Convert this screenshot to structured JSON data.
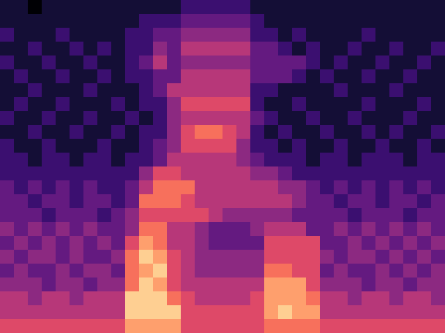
{
  "chart_data": {
    "type": "heatmap",
    "tick_labels": false,
    "zlim": [
      0,
      10
    ],
    "cells": [
      [
        1,
        1,
        0,
        1,
        1,
        1,
        1,
        1,
        1,
        1,
        1,
        1,
        1,
        2,
        2,
        2,
        2,
        2,
        1,
        1,
        1,
        1,
        1,
        1,
        1,
        1,
        1,
        1,
        1,
        1,
        1,
        1
      ],
      [
        1,
        1,
        1,
        1,
        1,
        1,
        1,
        1,
        1,
        1,
        2,
        2,
        2,
        3,
        3,
        3,
        3,
        3,
        2,
        1,
        1,
        1,
        1,
        1,
        1,
        1,
        1,
        1,
        1,
        1,
        1,
        1
      ],
      [
        2,
        1,
        1,
        1,
        2,
        1,
        1,
        1,
        1,
        2,
        2,
        3,
        3,
        4,
        4,
        4,
        4,
        4,
        2,
        2,
        1,
        2,
        1,
        1,
        1,
        1,
        2,
        1,
        1,
        1,
        1,
        1
      ],
      [
        1,
        1,
        2,
        1,
        1,
        2,
        1,
        2,
        1,
        2,
        2,
        4,
        3,
        5,
        5,
        5,
        5,
        5,
        3,
        3,
        2,
        1,
        2,
        1,
        1,
        2,
        1,
        1,
        2,
        1,
        1,
        2
      ],
      [
        2,
        1,
        1,
        2,
        1,
        1,
        2,
        1,
        1,
        2,
        3,
        5,
        3,
        4,
        4,
        4,
        4,
        4,
        3,
        3,
        3,
        3,
        2,
        1,
        2,
        1,
        1,
        2,
        1,
        1,
        2,
        1
      ],
      [
        1,
        2,
        1,
        1,
        2,
        1,
        1,
        2,
        1,
        2,
        2,
        3,
        3,
        5,
        5,
        5,
        5,
        5,
        3,
        3,
        3,
        2,
        1,
        2,
        1,
        1,
        2,
        1,
        1,
        2,
        1,
        1
      ],
      [
        1,
        1,
        2,
        1,
        1,
        1,
        2,
        1,
        1,
        1,
        2,
        3,
        5,
        5,
        5,
        5,
        5,
        5,
        2,
        2,
        1,
        1,
        1,
        1,
        2,
        1,
        1,
        1,
        2,
        1,
        1,
        1
      ],
      [
        1,
        2,
        1,
        1,
        2,
        1,
        1,
        1,
        2,
        1,
        2,
        2,
        4,
        6,
        6,
        6,
        6,
        6,
        2,
        1,
        1,
        2,
        1,
        1,
        1,
        1,
        2,
        1,
        1,
        1,
        2,
        1
      ],
      [
        2,
        1,
        1,
        2,
        1,
        1,
        2,
        1,
        1,
        2,
        1,
        2,
        4,
        5,
        5,
        5,
        5,
        5,
        3,
        2,
        1,
        1,
        2,
        1,
        1,
        2,
        1,
        1,
        1,
        2,
        1,
        1
      ],
      [
        1,
        1,
        2,
        1,
        1,
        2,
        1,
        1,
        2,
        1,
        2,
        2,
        4,
        6,
        7,
        7,
        6,
        5,
        2,
        1,
        2,
        1,
        1,
        2,
        1,
        1,
        2,
        1,
        2,
        1,
        1,
        2
      ],
      [
        2,
        1,
        1,
        2,
        1,
        1,
        1,
        2,
        1,
        1,
        2,
        3,
        4,
        6,
        6,
        6,
        6,
        4,
        2,
        2,
        1,
        2,
        1,
        1,
        2,
        1,
        1,
        2,
        1,
        1,
        2,
        1
      ],
      [
        2,
        2,
        1,
        2,
        2,
        1,
        2,
        2,
        1,
        2,
        2,
        3,
        5,
        5,
        5,
        5,
        5,
        4,
        3,
        2,
        2,
        2,
        1,
        2,
        2,
        1,
        2,
        2,
        2,
        1,
        2,
        2
      ],
      [
        2,
        2,
        2,
        2,
        2,
        2,
        2,
        2,
        2,
        2,
        4,
        6,
        6,
        5,
        5,
        5,
        5,
        5,
        4,
        4,
        3,
        2,
        2,
        2,
        2,
        2,
        2,
        2,
        2,
        2,
        2,
        2
      ],
      [
        3,
        2,
        3,
        2,
        3,
        2,
        3,
        2,
        2,
        3,
        5,
        7,
        7,
        7,
        5,
        5,
        5,
        5,
        5,
        5,
        4,
        4,
        3,
        2,
        3,
        2,
        3,
        2,
        3,
        2,
        3,
        2
      ],
      [
        3,
        3,
        2,
        3,
        3,
        2,
        3,
        3,
        2,
        3,
        7,
        7,
        7,
        6,
        5,
        5,
        5,
        5,
        5,
        5,
        5,
        4,
        3,
        3,
        2,
        3,
        3,
        2,
        3,
        3,
        2,
        3
      ],
      [
        3,
        3,
        3,
        2,
        3,
        3,
        3,
        2,
        3,
        4,
        6,
        6,
        6,
        6,
        6,
        5,
        4,
        4,
        4,
        4,
        4,
        3,
        3,
        3,
        3,
        2,
        3,
        3,
        3,
        2,
        3,
        3
      ],
      [
        4,
        3,
        4,
        3,
        4,
        3,
        4,
        3,
        3,
        4,
        7,
        7,
        5,
        5,
        4,
        3,
        3,
        3,
        4,
        5,
        5,
        5,
        3,
        3,
        4,
        3,
        4,
        3,
        4,
        3,
        4,
        3
      ],
      [
        3,
        4,
        3,
        4,
        3,
        4,
        3,
        4,
        3,
        6,
        8,
        7,
        5,
        5,
        4,
        3,
        3,
        3,
        3,
        6,
        6,
        6,
        6,
        3,
        3,
        4,
        3,
        4,
        3,
        4,
        3,
        4
      ],
      [
        4,
        3,
        4,
        4,
        3,
        4,
        3,
        3,
        4,
        7,
        9,
        8,
        6,
        5,
        4,
        4,
        4,
        4,
        4,
        6,
        6,
        6,
        6,
        4,
        3,
        4,
        4,
        3,
        4,
        3,
        4,
        3
      ],
      [
        3,
        4,
        3,
        3,
        4,
        3,
        4,
        4,
        3,
        7,
        8,
        9,
        6,
        5,
        4,
        4,
        4,
        4,
        4,
        7,
        7,
        6,
        6,
        3,
        4,
        3,
        3,
        4,
        3,
        4,
        3,
        4
      ],
      [
        4,
        4,
        4,
        3,
        4,
        4,
        3,
        4,
        4,
        7,
        9,
        8,
        6,
        5,
        5,
        5,
        5,
        5,
        5,
        8,
        8,
        8,
        6,
        4,
        4,
        4,
        3,
        4,
        4,
        3,
        4,
        4
      ],
      [
        5,
        5,
        4,
        5,
        5,
        4,
        5,
        5,
        5,
        9,
        9,
        9,
        7,
        6,
        5,
        5,
        5,
        5,
        6,
        8,
        8,
        8,
        7,
        5,
        5,
        4,
        5,
        5,
        4,
        5,
        5,
        4
      ],
      [
        5,
        5,
        5,
        5,
        5,
        5,
        5,
        5,
        5,
        9,
        9,
        9,
        9,
        6,
        6,
        6,
        6,
        6,
        6,
        8,
        9,
        8,
        8,
        5,
        5,
        5,
        5,
        5,
        5,
        5,
        5,
        5
      ],
      [
        6,
        6,
        6,
        6,
        6,
        6,
        6,
        6,
        6,
        8,
        8,
        8,
        8,
        6,
        6,
        6,
        6,
        6,
        6,
        7,
        7,
        7,
        7,
        6,
        6,
        6,
        6,
        6,
        6,
        6,
        6,
        6
      ]
    ]
  }
}
